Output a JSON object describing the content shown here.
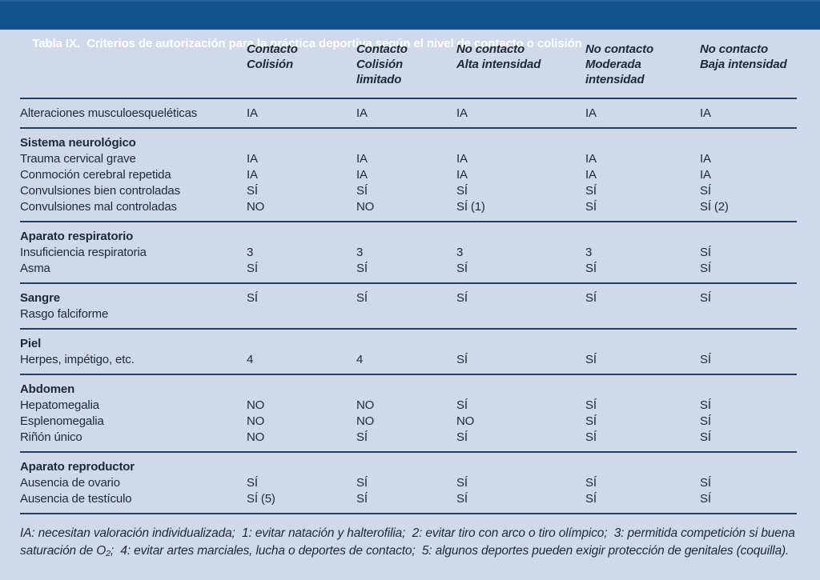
{
  "title": "Tabla IX.  Criterios de autorización para la práctica deportiva según el nivel de contacto o colisión",
  "columns": [
    "Contacto\nColisión",
    "Contacto\nColisión\nlimitado",
    "No contacto\nAlta intensidad",
    "No contacto\nModerada\nintensidad",
    "No contacto\nBaja intensidad"
  ],
  "sections": [
    {
      "header": null,
      "rows": [
        {
          "label": "Alteraciones musculoesqueléticas",
          "values": [
            "IA",
            "IA",
            "IA",
            "IA",
            "IA"
          ]
        }
      ]
    },
    {
      "header": "Sistema neurológico",
      "rows": [
        {
          "label": "Trauma cervical grave",
          "values": [
            "IA",
            "IA",
            "IA",
            "IA",
            "IA"
          ]
        },
        {
          "label": "Conmoción cerebral repetida",
          "values": [
            "IA",
            "IA",
            "IA",
            "IA",
            "IA"
          ]
        },
        {
          "label": "Convulsiones bien controladas",
          "values": [
            "SÍ",
            "SÍ",
            "SÍ",
            "SÍ",
            "SÍ"
          ]
        },
        {
          "label": "Convulsiones mal controladas",
          "values": [
            "NO",
            "NO",
            "SÍ (1)",
            "SÍ",
            "SÍ (2)"
          ]
        }
      ]
    },
    {
      "header": "Aparato respiratorio",
      "rows": [
        {
          "label": "Insuficiencia respiratoria",
          "values": [
            "3",
            "3",
            "3",
            "3",
            "SÍ"
          ]
        },
        {
          "label": "Asma",
          "values": [
            "SÍ",
            "SÍ",
            "SÍ",
            "SÍ",
            "SÍ"
          ]
        }
      ]
    },
    {
      "header": "Sangre",
      "header_values": [
        "SÍ",
        "SÍ",
        "SÍ",
        "SÍ",
        "SÍ"
      ],
      "rows": [
        {
          "label": "Rasgo falciforme",
          "values": [
            "",
            "",
            "",
            "",
            ""
          ]
        }
      ]
    },
    {
      "header": "Piel",
      "rows": [
        {
          "label": "Herpes, impétigo, etc.",
          "values": [
            "4",
            "4",
            "SÍ",
            "SÍ",
            "SÍ"
          ]
        }
      ]
    },
    {
      "header": "Abdomen",
      "rows": [
        {
          "label": "Hepatomegalia",
          "values": [
            "NO",
            "NO",
            "SÍ",
            "SÍ",
            "SÍ"
          ]
        },
        {
          "label": "Esplenomegalia",
          "values": [
            "NO",
            "NO",
            "NO",
            "SÍ",
            "SÍ"
          ]
        },
        {
          "label": "Riñón único",
          "values": [
            "NO",
            "SÍ",
            "SÍ",
            "SÍ",
            "SÍ"
          ]
        }
      ]
    },
    {
      "header": "Aparato reproductor",
      "rows": [
        {
          "label": "Ausencia de ovario",
          "values": [
            "SÍ",
            "SÍ",
            "SÍ",
            "SÍ",
            "SÍ"
          ]
        },
        {
          "label": "Ausencia de testículo",
          "values": [
            "SÍ (5)",
            "SÍ",
            "SÍ",
            "SÍ",
            "SÍ"
          ]
        }
      ]
    }
  ],
  "footnote": "IA: necesitan valoración individualizada;  1: evitar natación y halterofilia;  2: evitar tiro con arco o tiro olímpico;  3: permitida competición si buena saturación de O₂;  4: evitar artes marciales, lucha o deportes de contacto;  5: algunos deportes pueden exigir protección de genitales (coquilla).",
  "colors": {
    "titlebar_bg": "#11518d",
    "body_bg": "#cfd9e9",
    "text": "#1e2838",
    "rule": "#1e3f66",
    "title_text": "#ffffff"
  }
}
